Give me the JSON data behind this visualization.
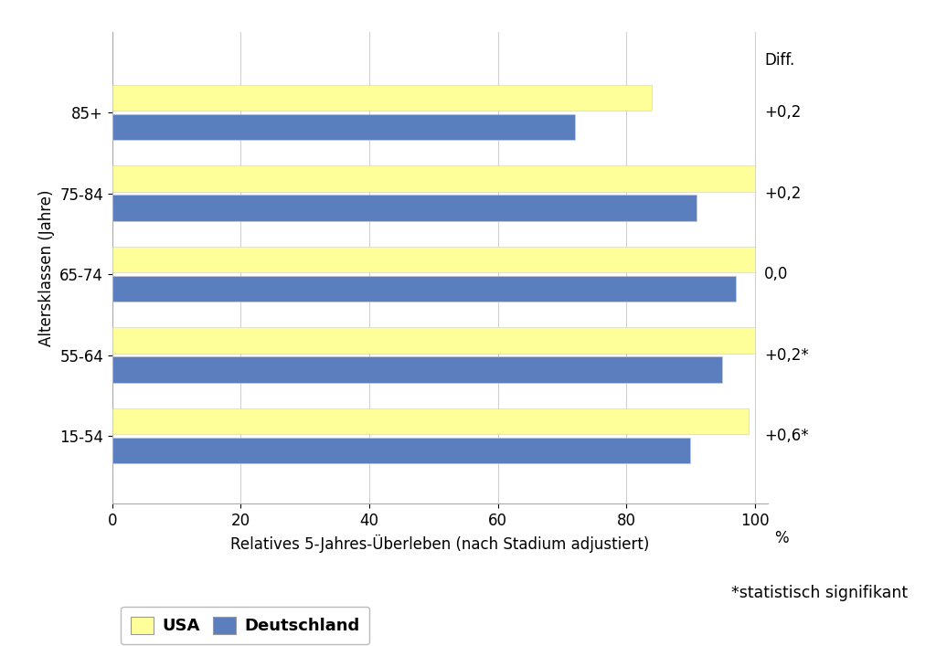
{
  "categories": [
    "15-54",
    "55-64",
    "65-74",
    "75-84",
    "85+"
  ],
  "usa_values": [
    99.0,
    100.0,
    100.0,
    100.0,
    84.0
  ],
  "de_values": [
    90.0,
    95.0,
    97.0,
    91.0,
    72.0
  ],
  "diff_labels": [
    "+0,6*",
    "+0,2*",
    "0,0",
    "+0,2",
    "+0,2"
  ],
  "usa_color": "#FFFF99",
  "de_color": "#5B7EBF",
  "xlabel": "Relatives 5-Jahres-Überleben (nach Stadium adjustiert)",
  "ylabel": "Altersklassen (Jahre)",
  "xlim_data": [
    0,
    100
  ],
  "xticks": [
    0,
    20,
    40,
    60,
    80,
    100
  ],
  "xtick_extra_label": "%",
  "diff_header": "Diff.",
  "legend_usa": "USA",
  "legend_de": "Deutschland",
  "note": "*statistisch signifikant",
  "bar_height": 0.32,
  "bar_gap": 0.04,
  "label_fontsize": 12,
  "tick_fontsize": 12,
  "diff_fontsize": 12,
  "legend_fontsize": 13,
  "background_color": "#ffffff",
  "grid_color": "#d0d0d0"
}
